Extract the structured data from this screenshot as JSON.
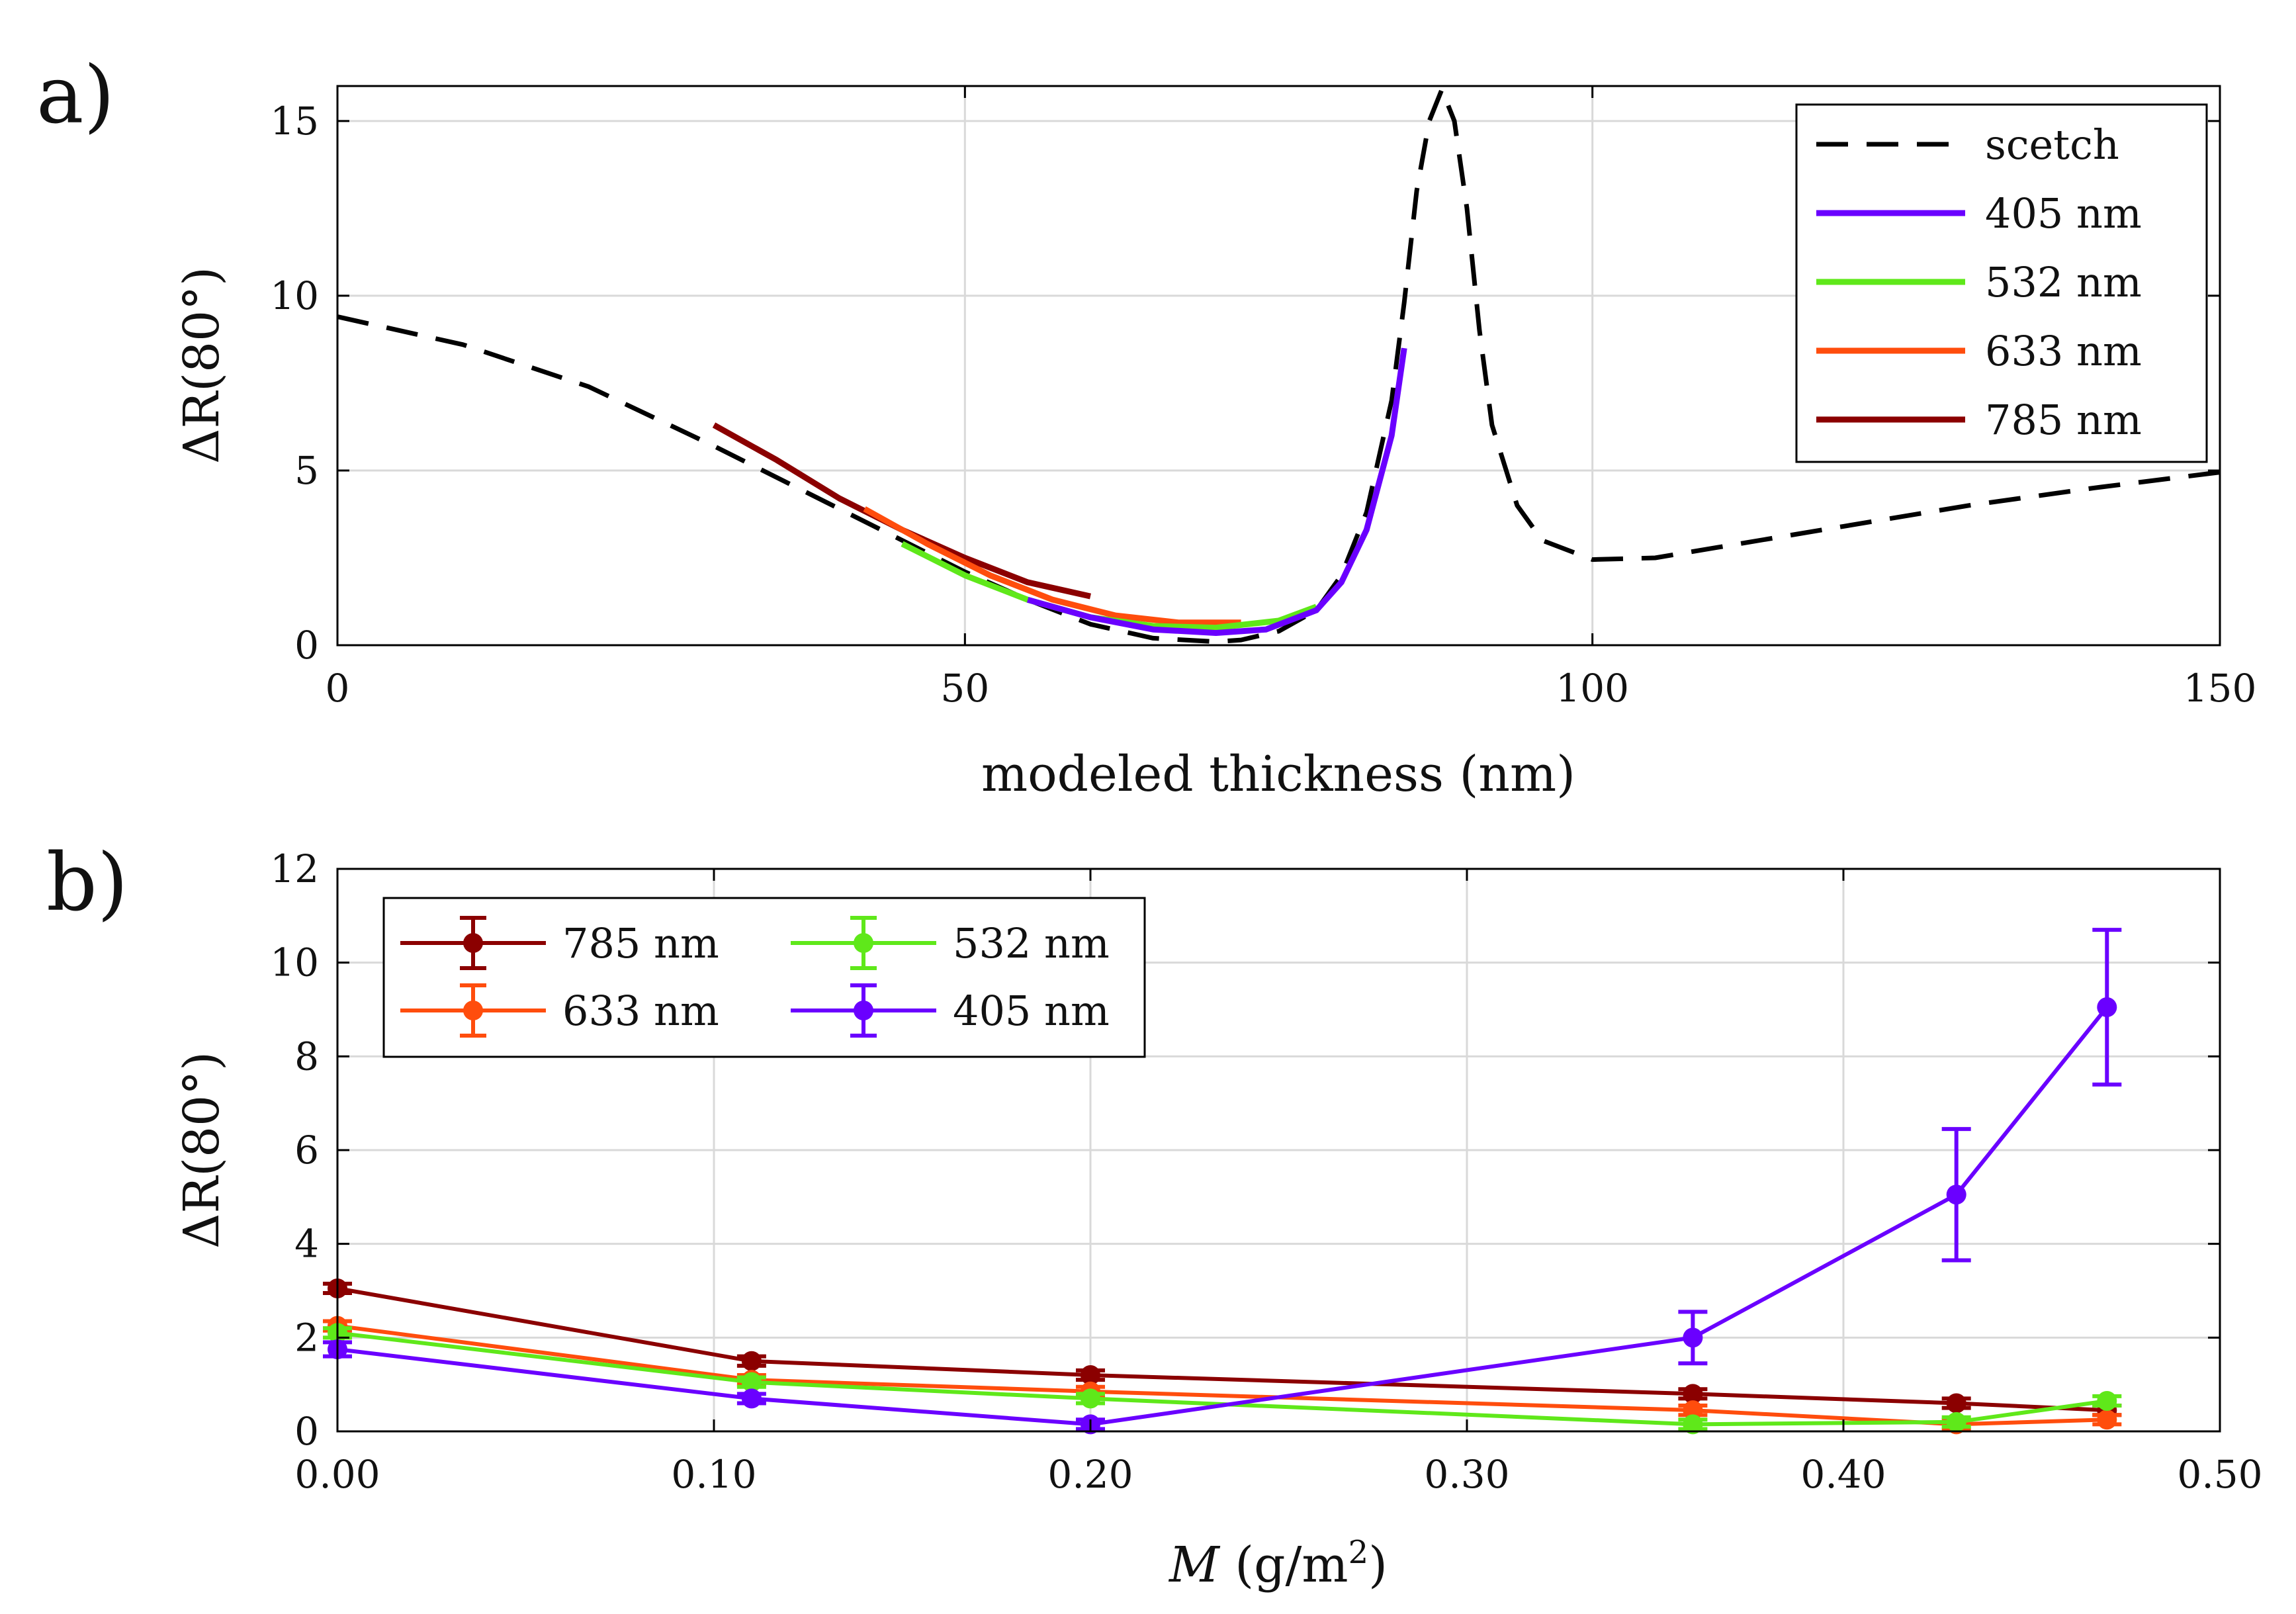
{
  "figure": {
    "panel_a_label": "a)",
    "panel_b_label": "b)"
  },
  "colors": {
    "c405": "#6a00ff",
    "c532": "#5fe81a",
    "c633": "#ff4d0d",
    "c785": "#8b0000",
    "sketch": "#000000",
    "grid": "#d9d9d9"
  },
  "chart_data": [
    {
      "type": "line",
      "panel": "a",
      "xlabel": "modeled thickness (nm)",
      "ylabel": "ΔR(80°)",
      "xlim": [
        0,
        150
      ],
      "ylim": [
        0,
        16
      ],
      "xticks": [
        0,
        50,
        100,
        150
      ],
      "yticks": [
        0,
        5,
        10,
        15
      ],
      "grid": true,
      "legend_position": "top-right",
      "series": [
        {
          "name": "scetch",
          "style": "dashed",
          "color": "#000000",
          "x": [
            0,
            10,
            20,
            30,
            40,
            50,
            55,
            60,
            65,
            70,
            72,
            75,
            78,
            80,
            82,
            84,
            85,
            86,
            87,
            88,
            89,
            90,
            91,
            92,
            94,
            96,
            100,
            105,
            110,
            120,
            130,
            140,
            150
          ],
          "y": [
            9.4,
            8.6,
            7.4,
            5.7,
            3.9,
            2.1,
            1.3,
            0.6,
            0.2,
            0.1,
            0.15,
            0.4,
            1.0,
            2.0,
            3.8,
            7.0,
            9.8,
            13.0,
            15.0,
            15.9,
            15.0,
            12.5,
            9.0,
            6.3,
            4.0,
            3.0,
            2.45,
            2.5,
            2.8,
            3.4,
            4.0,
            4.5,
            4.95
          ]
        },
        {
          "name": "405 nm",
          "style": "solid",
          "color": "#6a00ff",
          "x": [
            55,
            60,
            65,
            70,
            74,
            78,
            80,
            82,
            84,
            85
          ],
          "y": [
            1.3,
            0.8,
            0.45,
            0.35,
            0.45,
            1.0,
            1.8,
            3.3,
            6.0,
            8.5
          ]
        },
        {
          "name": "532 nm",
          "style": "solid",
          "color": "#5fe81a",
          "x": [
            45,
            50,
            55,
            60,
            65,
            70,
            75,
            78
          ],
          "y": [
            2.9,
            2.0,
            1.3,
            0.8,
            0.55,
            0.5,
            0.7,
            1.1
          ]
        },
        {
          "name": "633 nm",
          "style": "solid",
          "color": "#ff4d0d",
          "x": [
            42,
            47,
            52,
            57,
            62,
            67,
            72
          ],
          "y": [
            3.9,
            2.9,
            2.0,
            1.3,
            0.85,
            0.65,
            0.65
          ]
        },
        {
          "name": "785 nm",
          "style": "solid",
          "color": "#8b0000",
          "x": [
            30,
            35,
            40,
            45,
            50,
            55,
            60
          ],
          "y": [
            6.3,
            5.3,
            4.2,
            3.3,
            2.5,
            1.8,
            1.4
          ]
        }
      ]
    },
    {
      "type": "line",
      "panel": "b",
      "xlabel_var": "M",
      "xlabel_unit": "(g/m",
      "xlabel_sup": "2",
      "xlabel_close": ")",
      "ylabel": "ΔR(80°)",
      "xlim": [
        0,
        0.5
      ],
      "ylim": [
        0,
        12
      ],
      "xticks": [
        0,
        0.1,
        0.2,
        0.3,
        0.4,
        0.5
      ],
      "xtick_labels": [
        "0.00",
        "0.10",
        "0.20",
        "0.30",
        "0.40",
        "0.50"
      ],
      "yticks": [
        0,
        2,
        4,
        6,
        8,
        10,
        12
      ],
      "grid": true,
      "legend_position": "top-left",
      "x": [
        0,
        0.11,
        0.2,
        0.36,
        0.43,
        0.47
      ],
      "series": [
        {
          "name": "785 nm",
          "color": "#8b0000",
          "values": [
            3.05,
            1.5,
            1.2,
            0.8,
            0.6,
            0.45
          ],
          "errors": [
            0.1,
            0.1,
            0.1,
            0.1,
            0.1,
            0.1
          ]
        },
        {
          "name": "532 nm",
          "color": "#5fe81a",
          "values": [
            2.1,
            1.05,
            0.7,
            0.15,
            0.2,
            0.65
          ],
          "errors": [
            0.1,
            0.1,
            0.1,
            0.1,
            0.1,
            0.1
          ]
        },
        {
          "name": "633 nm",
          "color": "#ff4d0d",
          "values": [
            2.25,
            1.1,
            0.85,
            0.45,
            0.15,
            0.25
          ],
          "errors": [
            0.1,
            0.1,
            0.1,
            0.1,
            0.1,
            0.1
          ]
        },
        {
          "name": "405 nm",
          "color": "#6a00ff",
          "values": [
            1.75,
            0.7,
            0.15,
            2.0,
            5.05,
            9.05
          ],
          "errors": [
            0.15,
            0.1,
            0.1,
            0.55,
            1.4,
            1.65
          ]
        }
      ]
    }
  ]
}
